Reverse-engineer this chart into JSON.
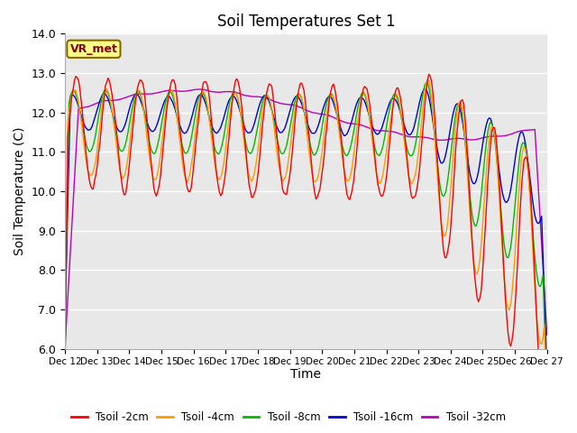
{
  "title": "Soil Temperatures Set 1",
  "xlabel": "Time",
  "ylabel": "Soil Temperature (C)",
  "ylim": [
    6.0,
    14.0
  ],
  "yticks": [
    6.0,
    7.0,
    8.0,
    9.0,
    10.0,
    11.0,
    12.0,
    13.0,
    14.0
  ],
  "xtick_labels": [
    "Dec 12",
    "Dec 13",
    "Dec 14",
    "Dec 15",
    "Dec 16",
    "Dec 17",
    "Dec 18",
    "Dec 19",
    "Dec 20",
    "Dec 21",
    "Dec 22",
    "Dec 23",
    "Dec 24",
    "Dec 25",
    "Dec 26",
    "Dec 27"
  ],
  "series_colors": [
    "#ff0000",
    "#ff9900",
    "#00bb00",
    "#0000cc",
    "#bb00bb"
  ],
  "series_labels": [
    "Tsoil -2cm",
    "Tsoil -4cm",
    "Tsoil -8cm",
    "Tsoil -16cm",
    "Tsoil -32cm"
  ],
  "background_color": "#e8e8e8",
  "annotation_text": "VR_met",
  "annotation_box_color": "#ffff88",
  "annotation_border_color": "#886600",
  "annotation_text_color": "#880000",
  "title_fontsize": 12,
  "axis_label_fontsize": 10,
  "tick_fontsize": 9
}
